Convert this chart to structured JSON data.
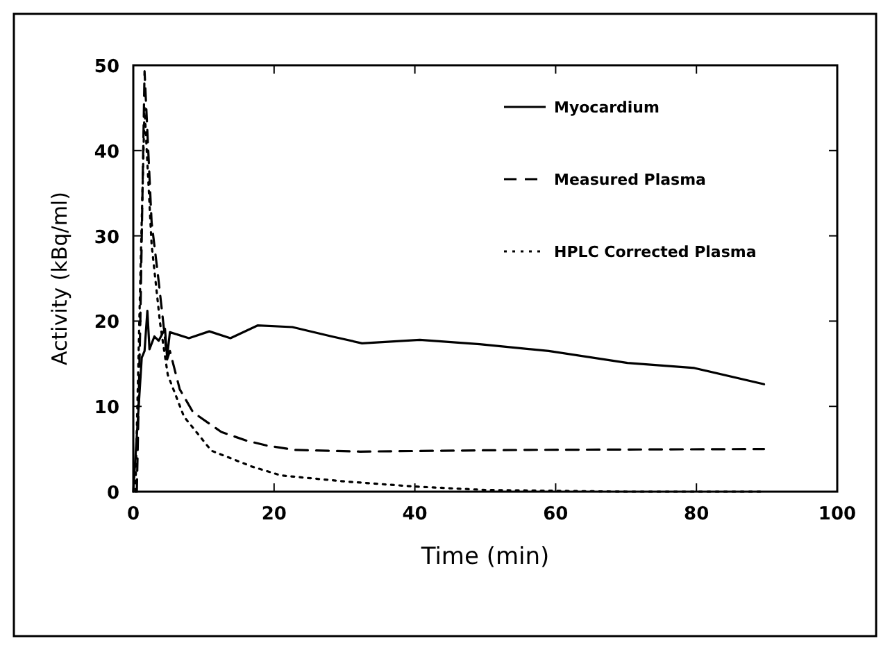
{
  "chart_data": {
    "type": "line",
    "xlabel": "Time (min)",
    "ylabel": "Activity (kBq/ml)",
    "xlim": [
      0,
      100
    ],
    "ylim": [
      0,
      50
    ],
    "xticks": [
      0,
      20,
      40,
      60,
      80,
      100
    ],
    "yticks": [
      0,
      10,
      20,
      30,
      40,
      50
    ],
    "grid": false,
    "legend": "top right",
    "marker": "none",
    "series": [
      {
        "name": "Myocardium",
        "color": "#000000",
        "line_style": "solid",
        "x": [
          0,
          1.2,
          1.6,
          2.0,
          2.3,
          3.0,
          3.6,
          4.5,
          4.8,
          5.2,
          7.9,
          10.8,
          13.8,
          17.7,
          22.6,
          28.2,
          32.5,
          40.7,
          49.2,
          59,
          70.2,
          79.7,
          89.6
        ],
        "values": [
          0,
          15.7,
          16.5,
          21.2,
          16.7,
          18.2,
          17.7,
          19.1,
          15.8,
          18.7,
          18.0,
          18.8,
          18.0,
          19.5,
          19.3,
          18.2,
          17.4,
          17.8,
          17.3,
          16.5,
          15.1,
          14.5,
          12.6
        ]
      },
      {
        "name": "Measured Plasma",
        "color": "#000000",
        "line_style": "dashed",
        "x": [
          0.5,
          1.0,
          1.6,
          2.6,
          3.6,
          4.5,
          4.8,
          5.2,
          6.6,
          8.5,
          12.5,
          16,
          19,
          22.9,
          32.2,
          55.8,
          89.6
        ],
        "values": [
          0,
          20,
          49.3,
          31.6,
          24.7,
          18,
          15.5,
          16.5,
          12.0,
          9.3,
          7.0,
          6.0,
          5.4,
          4.9,
          4.7,
          4.9,
          5.0
        ]
      },
      {
        "name": "HPLC Corrected Plasma",
        "color": "#000000",
        "line_style": "dotted",
        "x": [
          0.3,
          1.0,
          1.6,
          2.6,
          3.8,
          4.9,
          7.2,
          11.1,
          17,
          21,
          30,
          40,
          50,
          60,
          70,
          80,
          89.6
        ],
        "values": [
          0,
          25,
          45,
          29,
          19.8,
          13.7,
          8.8,
          4.8,
          2.9,
          1.9,
          1.2,
          0.6,
          0.2,
          0.1,
          0,
          0,
          0
        ]
      }
    ]
  }
}
